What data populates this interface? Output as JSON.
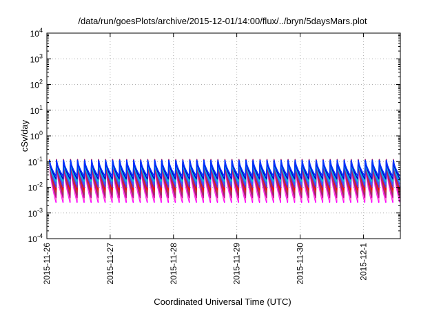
{
  "chart_data": {
    "type": "line",
    "title": "/data/run/goesPlots/archive/2015-12-01/14:00/flux/../bryn/5daysMars.plot",
    "xlabel": "Coordinated Universal Time (UTC)",
    "ylabel": "cSv/day",
    "y_scale": "log",
    "ylim": [
      0.0001,
      10000
    ],
    "y_ticks": [
      {
        "base": "10",
        "exp": "4"
      },
      {
        "base": "10",
        "exp": "3"
      },
      {
        "base": "10",
        "exp": "2"
      },
      {
        "base": "10",
        "exp": "1"
      },
      {
        "base": "10",
        "exp": "0"
      },
      {
        "base": "10",
        "exp": "-1"
      },
      {
        "base": "10",
        "exp": "-2"
      },
      {
        "base": "10",
        "exp": "-3"
      },
      {
        "base": "10",
        "exp": "-4"
      }
    ],
    "xlim": [
      "2015-11-26",
      "2015-12-01T14:00"
    ],
    "x_ticks": [
      "2015-11-26",
      "2015-11-27",
      "2015-11-28",
      "2015-11-29",
      "2015-11-30",
      "2015-12-1"
    ],
    "grid": true,
    "sawtooth_cycles": 50,
    "series": [
      {
        "color": "#ff00ff",
        "peak": 0.085,
        "trough": 0.0026
      },
      {
        "color": "#ff66cc",
        "peak": 0.09,
        "trough": 0.0032
      },
      {
        "color": "#cc0099",
        "peak": 0.095,
        "trough": 0.004
      },
      {
        "color": "#993366",
        "peak": 0.1,
        "trough": 0.005
      },
      {
        "color": "#cc3333",
        "peak": 0.11,
        "trough": 0.0065
      },
      {
        "color": "#ff0000",
        "peak": 0.12,
        "trough": 0.008
      },
      {
        "color": "#6633cc",
        "peak": 0.1,
        "trough": 0.01
      },
      {
        "color": "#3366ff",
        "peak": 0.105,
        "trough": 0.013
      },
      {
        "color": "#00cccc",
        "peak": 0.095,
        "trough": 0.017
      },
      {
        "color": "#0000cc",
        "peak": 0.11,
        "trough": 0.021
      },
      {
        "color": "#0033ff",
        "peak": 0.115,
        "trough": 0.027
      }
    ]
  }
}
